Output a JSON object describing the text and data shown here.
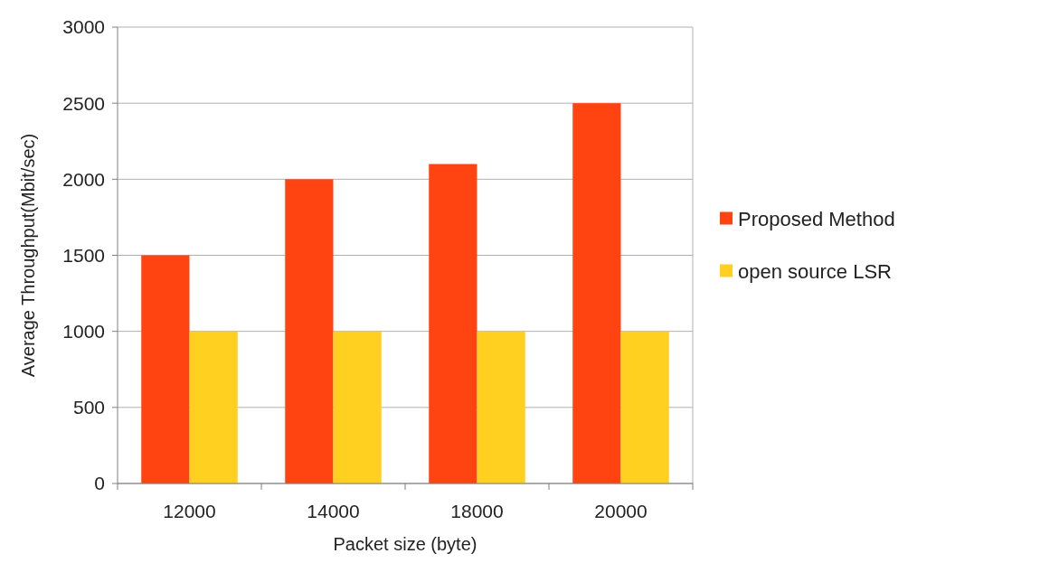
{
  "chart_data": {
    "type": "bar",
    "xlabel": "Packet size (byte)",
    "ylabel": "Average Throughput(Mbit/sec)",
    "categories": [
      "12000",
      "14000",
      "18000",
      "20000"
    ],
    "series": [
      {
        "name": "Proposed Method",
        "color": "#ff4411",
        "values": [
          1500,
          2000,
          2100,
          2500
        ]
      },
      {
        "name": "open source LSR",
        "color": "#ffd020",
        "values": [
          1000,
          1000,
          1000,
          1000
        ]
      }
    ],
    "ylim": [
      0,
      3000
    ],
    "yticks": [
      0,
      500,
      1000,
      1500,
      2000,
      2500,
      3000
    ],
    "grid": "y",
    "legend": "right"
  }
}
